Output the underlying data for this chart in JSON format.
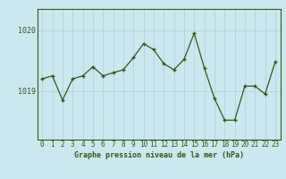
{
  "x": [
    0,
    1,
    2,
    3,
    4,
    5,
    6,
    7,
    8,
    9,
    10,
    11,
    12,
    13,
    14,
    15,
    16,
    17,
    18,
    19,
    20,
    21,
    22,
    23
  ],
  "y": [
    1019.2,
    1019.25,
    1018.85,
    1019.2,
    1019.25,
    1019.4,
    1019.25,
    1019.3,
    1019.35,
    1019.55,
    1019.78,
    1019.68,
    1019.45,
    1019.35,
    1019.52,
    1019.95,
    1019.38,
    1018.88,
    1018.52,
    1018.52,
    1019.08,
    1019.08,
    1018.95,
    1019.48
  ],
  "line_color": "#2d5a1b",
  "marker": "+",
  "bg_color": "#cce8ee",
  "grid_color": "#aed4da",
  "ytick_vals": [
    1019.0,
    1020.0
  ],
  "ytick_labels": [
    "1019",
    "1020"
  ],
  "ylim": [
    1018.2,
    1020.35
  ],
  "xlim": [
    -0.5,
    23.5
  ],
  "xlabel_label": "Graphe pression niveau de la mer (hPa)",
  "axis_color": "#2d5a1b",
  "font_color": "#2d5a1b",
  "tick_fontsize": 5.5,
  "label_fontsize": 6.0
}
